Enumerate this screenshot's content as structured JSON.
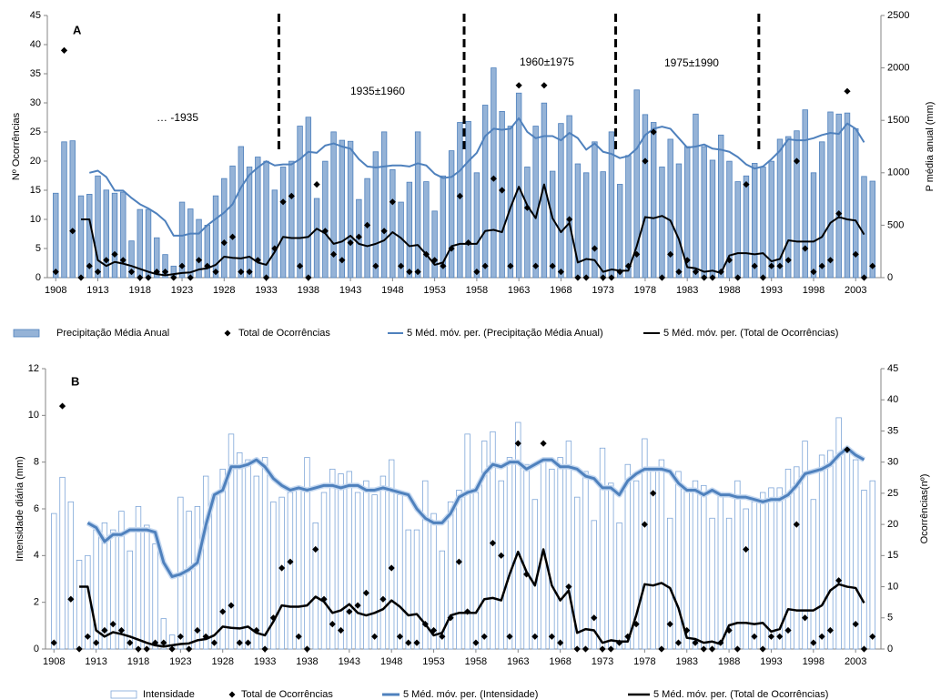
{
  "chart_data": [
    {
      "type": "bar",
      "panel": "A",
      "ylabel": "Nº Ocorrências",
      "y2label": "P média anual (mm)",
      "x": [
        1908,
        1909,
        1910,
        1911,
        1912,
        1913,
        1914,
        1915,
        1916,
        1917,
        1918,
        1919,
        1920,
        1921,
        1922,
        1923,
        1924,
        1925,
        1926,
        1927,
        1928,
        1929,
        1930,
        1931,
        1932,
        1933,
        1934,
        1935,
        1936,
        1937,
        1938,
        1939,
        1940,
        1941,
        1942,
        1943,
        1944,
        1945,
        1946,
        1947,
        1948,
        1949,
        1950,
        1951,
        1952,
        1953,
        1954,
        1955,
        1956,
        1957,
        1958,
        1959,
        1960,
        1961,
        1962,
        1963,
        1964,
        1965,
        1966,
        1967,
        1968,
        1969,
        1970,
        1971,
        1972,
        1973,
        1974,
        1975,
        1976,
        1977,
        1978,
        1979,
        1980,
        1981,
        1982,
        1983,
        1984,
        1985,
        1986,
        1987,
        1988,
        1989,
        1990,
        1991,
        1992,
        1993,
        1994,
        1995,
        1996,
        1997,
        1998,
        1999,
        2000,
        2001,
        2002,
        2003,
        2004,
        2005
      ],
      "xlim": [
        1907,
        2006
      ],
      "xticks": [
        1908,
        1913,
        1918,
        1923,
        1928,
        1933,
        1938,
        1943,
        1948,
        1953,
        1958,
        1963,
        1968,
        1973,
        1978,
        1983,
        1988,
        1993,
        1998,
        2003
      ],
      "ylim": [
        0,
        45
      ],
      "yticks": [
        0,
        5,
        10,
        15,
        20,
        25,
        30,
        35,
        40,
        45
      ],
      "y2lim": [
        0,
        2500
      ],
      "y2ticks": [
        0,
        500,
        1000,
        1500,
        2000,
        2500
      ],
      "grid": false,
      "vlines": [
        1934.5,
        1956.5,
        1974.5,
        1991.5
      ],
      "annotations": [
        "A",
        "… -1935",
        "1935±1960",
        "1960±1975",
        "1975±1990"
      ],
      "series": [
        {
          "name": "Precipitação Média Anual",
          "mark": "bar",
          "axis": "y2",
          "color": "#4f81bd",
          "fill": "#95b3d7",
          "values": [
            805,
            1295,
            1305,
            780,
            795,
            970,
            835,
            805,
            815,
            350,
            650,
            650,
            380,
            220,
            110,
            720,
            655,
            555,
            500,
            780,
            945,
            1065,
            1250,
            1055,
            1150,
            1110,
            835,
            1055,
            1110,
            1445,
            1530,
            755,
            1110,
            1390,
            1310,
            1300,
            745,
            945,
            1200,
            1390,
            1030,
            720,
            910,
            1390,
            915,
            635,
            970,
            1210,
            1480,
            1490,
            1000,
            1645,
            2000,
            1585,
            1445,
            1760,
            1055,
            1445,
            1665,
            1015,
            1470,
            1545,
            1085,
            1000,
            1295,
            1010,
            1390,
            890,
            1165,
            1790,
            1555,
            1480,
            1055,
            1320,
            1085,
            1250,
            1560,
            1250,
            1120,
            1360,
            1110,
            915,
            970,
            1090,
            1055,
            1110,
            1320,
            1345,
            1400,
            1600,
            1000,
            1295,
            1580,
            1560,
            1570,
            1420,
            965,
            920
          ]
        },
        {
          "name": "Total de Ocorrências",
          "mark": "diamond",
          "axis": "y",
          "color": "#000000",
          "values": [
            1,
            39,
            8,
            0,
            2,
            1,
            3,
            4,
            3,
            1,
            0,
            0,
            1,
            1,
            0,
            2,
            0,
            3,
            2,
            1,
            6,
            7,
            1,
            1,
            3,
            0,
            5,
            13,
            14,
            2,
            0,
            16,
            8,
            4,
            3,
            6,
            7,
            9,
            2,
            8,
            13,
            2,
            1,
            1,
            4,
            3,
            2,
            5,
            14,
            6,
            1,
            2,
            17,
            15,
            2,
            33,
            12,
            2,
            33,
            2,
            1,
            10,
            0,
            0,
            5,
            0,
            0,
            1,
            2,
            4,
            20,
            25,
            0,
            4,
            1,
            3,
            1,
            0,
            0,
            1,
            3,
            0,
            16,
            2,
            0,
            2,
            2,
            3,
            20,
            5,
            1,
            2,
            3,
            11,
            32,
            4,
            0,
            2
          ]
        },
        {
          "name": "5 Méd. móv. per. (Precipitação Média Anual)",
          "mark": "line",
          "axis": "y2",
          "color": "#4f81bd",
          "values": [
            null,
            null,
            null,
            null,
            1000,
            1020,
            960,
            830,
            830,
            760,
            700,
            660,
            610,
            540,
            400,
            400,
            420,
            420,
            500,
            560,
            620,
            700,
            860,
            980,
            1050,
            1110,
            1070,
            1080,
            1080,
            1130,
            1200,
            1190,
            1260,
            1280,
            1250,
            1230,
            1130,
            1060,
            1050,
            1060,
            1070,
            1070,
            1060,
            1090,
            1070,
            990,
            950,
            960,
            1020,
            1110,
            1190,
            1350,
            1420,
            1410,
            1420,
            1520,
            1390,
            1330,
            1350,
            1350,
            1310,
            1380,
            1330,
            1220,
            1280,
            1200,
            1180,
            1140,
            1160,
            1230,
            1360,
            1420,
            1440,
            1420,
            1330,
            1240,
            1250,
            1270,
            1230,
            1220,
            1200,
            1150,
            1080,
            1040,
            1060,
            1130,
            1210,
            1320,
            1310,
            1310,
            1330,
            1360,
            1380,
            1370,
            1470,
            1420,
            1290,
            null
          ]
        },
        {
          "name": "5 Méd. móv. per. (Total de Ocorrências)",
          "mark": "line",
          "axis": "y",
          "color": "#000000",
          "values": [
            null,
            null,
            null,
            10,
            10,
            3,
            2,
            2.7,
            2.4,
            2,
            1.5,
            1,
            0.6,
            0.4,
            0.6,
            0.8,
            0.9,
            1.4,
            1.6,
            2.2,
            3.6,
            3.4,
            3.3,
            3.6,
            2.6,
            2.2,
            4.4,
            7,
            6.8,
            6.8,
            7,
            8.4,
            7.6,
            5.8,
            6.2,
            7.2,
            5.8,
            5.4,
            5.8,
            6.4,
            7.8,
            6.8,
            5.4,
            5.6,
            4,
            2.2,
            2.6,
            5.4,
            5.8,
            5.8,
            5.8,
            8,
            8.2,
            7.8,
            12,
            15.6,
            12.4,
            10.2,
            16,
            10.2,
            7.8,
            9.4,
            2.6,
            3.2,
            3,
            1,
            1.4,
            1.2,
            1.2,
            5.4,
            10.4,
            10.2,
            10.6,
            9.8,
            6.6,
            1.8,
            1.6,
            1,
            1.2,
            0.8,
            3.8,
            4.2,
            4.2,
            4,
            4.2,
            2.8,
            3.2,
            6.4,
            6.2,
            6.2,
            6.2,
            7,
            9.4,
            10.4,
            10,
            9.8,
            7.4,
            null
          ]
        }
      ]
    },
    {
      "type": "bar",
      "panel": "B",
      "ylabel": "Intensidade diária (mm)",
      "y2label": "Ocorrências(nº)",
      "x": [
        1908,
        1909,
        1910,
        1911,
        1912,
        1913,
        1914,
        1915,
        1916,
        1917,
        1918,
        1919,
        1920,
        1921,
        1922,
        1923,
        1924,
        1925,
        1926,
        1927,
        1928,
        1929,
        1930,
        1931,
        1932,
        1933,
        1934,
        1935,
        1936,
        1937,
        1938,
        1939,
        1940,
        1941,
        1942,
        1943,
        1944,
        1945,
        1946,
        1947,
        1948,
        1949,
        1950,
        1951,
        1952,
        1953,
        1954,
        1955,
        1956,
        1957,
        1958,
        1959,
        1960,
        1961,
        1962,
        1963,
        1964,
        1965,
        1966,
        1967,
        1968,
        1969,
        1970,
        1971,
        1972,
        1973,
        1974,
        1975,
        1976,
        1977,
        1978,
        1979,
        1980,
        1981,
        1982,
        1983,
        1984,
        1985,
        1986,
        1987,
        1988,
        1989,
        1990,
        1991,
        1992,
        1993,
        1994,
        1995,
        1996,
        1997,
        1998,
        1999,
        2000,
        2001,
        2002,
        2003,
        2004,
        2005
      ],
      "xlim": [
        1907,
        2006
      ],
      "xticks": [
        1908,
        1913,
        1918,
        1923,
        1928,
        1933,
        1938,
        1943,
        1948,
        1953,
        1958,
        1963,
        1968,
        1973,
        1978,
        1983,
        1988,
        1993,
        1998,
        2003
      ],
      "ylim": [
        0,
        12
      ],
      "yticks": [
        0,
        2,
        4,
        6,
        8,
        10,
        12
      ],
      "y2lim": [
        0,
        45
      ],
      "y2ticks": [
        0,
        5,
        10,
        15,
        20,
        25,
        30,
        35,
        40,
        45
      ],
      "grid": false,
      "annotations": [
        "B"
      ],
      "series": [
        {
          "name": "Intensidade",
          "mark": "bar",
          "axis": "y",
          "color": "#7ea6d8",
          "fill": "#ffffff",
          "values": [
            5.8,
            7.35,
            6.3,
            3.8,
            4,
            5.1,
            5.4,
            5.1,
            5.9,
            4.2,
            6.1,
            5.3,
            4.5,
            1.3,
            0.6,
            6.5,
            5.9,
            6.1,
            7.4,
            6.6,
            7.7,
            9.2,
            8.4,
            8.1,
            7.4,
            8.2,
            6.3,
            6.5,
            6.7,
            6.8,
            8.2,
            5.4,
            6.7,
            7.7,
            7.5,
            7.6,
            6.7,
            7.2,
            6.6,
            7.4,
            8.1,
            6.6,
            5.1,
            5.1,
            7.2,
            5.8,
            4.2,
            6.3,
            6.8,
            9.2,
            6.7,
            8.9,
            9.3,
            7.2,
            8.2,
            9.7,
            7.9,
            6.4,
            8,
            7.7,
            8.2,
            8.9,
            6.5,
            7.6,
            5.5,
            8.6,
            7.1,
            5.4,
            7.9,
            7.2,
            9,
            7.7,
            8.1,
            5.6,
            7.6,
            6.9,
            7.2,
            7,
            5.6,
            6.7,
            5.6,
            7.2,
            6,
            6.3,
            6.7,
            6.9,
            6.9,
            7.7,
            7.8,
            8.9,
            6.4,
            8.3,
            8.5,
            9.9,
            8.4,
            8.1,
            6.8,
            7.2
          ]
        },
        {
          "name": "Total de Ocorrências",
          "mark": "diamond",
          "axis": "y2",
          "color": "#000000",
          "values": [
            1,
            39,
            8,
            0,
            2,
            1,
            3,
            4,
            3,
            1,
            0,
            0,
            1,
            1,
            0,
            2,
            0,
            3,
            2,
            1,
            6,
            7,
            1,
            1,
            3,
            0,
            5,
            13,
            14,
            2,
            0,
            16,
            8,
            4,
            3,
            6,
            7,
            9,
            2,
            8,
            13,
            2,
            1,
            1,
            4,
            3,
            2,
            5,
            14,
            6,
            1,
            2,
            17,
            15,
            2,
            33,
            12,
            2,
            33,
            2,
            1,
            10,
            0,
            0,
            5,
            0,
            0,
            1,
            2,
            4,
            20,
            25,
            0,
            4,
            1,
            3,
            1,
            0,
            0,
            1,
            3,
            0,
            16,
            2,
            0,
            2,
            2,
            3,
            20,
            5,
            1,
            2,
            3,
            11,
            32,
            4,
            0,
            2
          ]
        },
        {
          "name": "5 Méd. móv. per. (Intensidade)",
          "mark": "line",
          "axis": "y",
          "color": "#4f81bd",
          "values": [
            null,
            null,
            null,
            null,
            5.4,
            5.2,
            4.6,
            4.9,
            4.9,
            5.1,
            5.1,
            5.1,
            5,
            3.7,
            3.1,
            3.2,
            3.4,
            3.7,
            5.3,
            6.6,
            6.8,
            7.8,
            7.8,
            7.9,
            8.1,
            7.8,
            7.3,
            7,
            6.8,
            6.9,
            6.8,
            6.9,
            7,
            7,
            6.9,
            7,
            7,
            6.8,
            6.8,
            6.9,
            6.8,
            6.7,
            6.6,
            6,
            5.6,
            5.4,
            5.4,
            5.8,
            6.5,
            6.7,
            6.8,
            7.5,
            7.9,
            7.8,
            8,
            8,
            7.7,
            7.9,
            8.1,
            8.1,
            7.8,
            7.8,
            7.7,
            7.4,
            7.3,
            6.9,
            6.9,
            6.6,
            7.2,
            7.5,
            7.7,
            7.7,
            7.7,
            7.6,
            7.1,
            6.8,
            6.8,
            6.6,
            6.8,
            6.6,
            6.6,
            6.5,
            6.5,
            6.4,
            6.3,
            6.4,
            6.4,
            6.6,
            7,
            7.5,
            7.6,
            7.7,
            7.9,
            8.3,
            8.6,
            8.3,
            8.1,
            null
          ]
        },
        {
          "name": "5 Méd. móv. per. (Total de Ocorrências)",
          "mark": "line",
          "axis": "y2",
          "color": "#000000",
          "values": [
            null,
            null,
            null,
            10,
            10,
            3,
            2,
            2.7,
            2.4,
            2,
            1.5,
            1,
            0.6,
            0.4,
            0.6,
            0.8,
            0.9,
            1.4,
            1.6,
            2.2,
            3.6,
            3.4,
            3.3,
            3.6,
            2.6,
            2.2,
            4.4,
            7,
            6.8,
            6.8,
            7,
            8.4,
            7.6,
            5.8,
            6.2,
            7.2,
            5.8,
            5.4,
            5.8,
            6.4,
            7.8,
            6.8,
            5.4,
            5.6,
            4,
            2.2,
            2.6,
            5.4,
            5.8,
            5.8,
            5.8,
            8,
            8.2,
            7.8,
            12,
            15.6,
            12.4,
            10.2,
            16,
            10.2,
            7.8,
            9.4,
            2.6,
            3.2,
            3,
            1,
            1.4,
            1.2,
            1.2,
            5.4,
            10.4,
            10.2,
            10.6,
            9.8,
            6.6,
            1.8,
            1.6,
            1,
            1.2,
            0.8,
            3.8,
            4.2,
            4.2,
            4,
            4.2,
            2.8,
            3.2,
            6.4,
            6.2,
            6.2,
            6.2,
            7,
            9.4,
            10.4,
            10,
            9.8,
            7.4,
            null
          ]
        }
      ]
    }
  ]
}
